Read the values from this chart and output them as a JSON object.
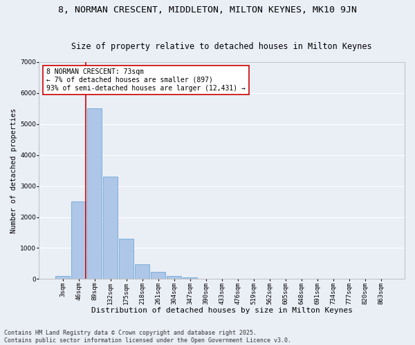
{
  "title1": "8, NORMAN CRESCENT, MIDDLETON, MILTON KEYNES, MK10 9JN",
  "title2": "Size of property relative to detached houses in Milton Keynes",
  "xlabel": "Distribution of detached houses by size in Milton Keynes",
  "ylabel": "Number of detached properties",
  "bar_labels": [
    "3sqm",
    "46sqm",
    "89sqm",
    "132sqm",
    "175sqm",
    "218sqm",
    "261sqm",
    "304sqm",
    "347sqm",
    "390sqm",
    "433sqm",
    "476sqm",
    "519sqm",
    "562sqm",
    "605sqm",
    "648sqm",
    "691sqm",
    "734sqm",
    "777sqm",
    "820sqm",
    "863sqm"
  ],
  "bar_values": [
    100,
    2500,
    5500,
    3300,
    1300,
    480,
    230,
    100,
    60,
    0,
    0,
    0,
    0,
    0,
    0,
    0,
    0,
    0,
    0,
    0,
    0
  ],
  "bar_color": "#aec6e8",
  "bar_edgecolor": "#5a9fd4",
  "vline_x": 1.45,
  "vline_color": "#cc0000",
  "annotation_text": "8 NORMAN CRESCENT: 73sqm\n← 7% of detached houses are smaller (897)\n93% of semi-detached houses are larger (12,431) →",
  "annotation_box_color": "#ffffff",
  "annotation_box_edgecolor": "#cc0000",
  "ylim": [
    0,
    7000
  ],
  "yticks": [
    0,
    1000,
    2000,
    3000,
    4000,
    5000,
    6000,
    7000
  ],
  "bg_color": "#eaeef5",
  "grid_color": "#ffffff",
  "footnote": "Contains HM Land Registry data © Crown copyright and database right 2025.\nContains public sector information licensed under the Open Government Licence v3.0.",
  "title1_fontsize": 9.5,
  "title2_fontsize": 8.5,
  "xlabel_fontsize": 8,
  "ylabel_fontsize": 7.5,
  "tick_fontsize": 6.5,
  "annotation_fontsize": 7,
  "footnote_fontsize": 6
}
